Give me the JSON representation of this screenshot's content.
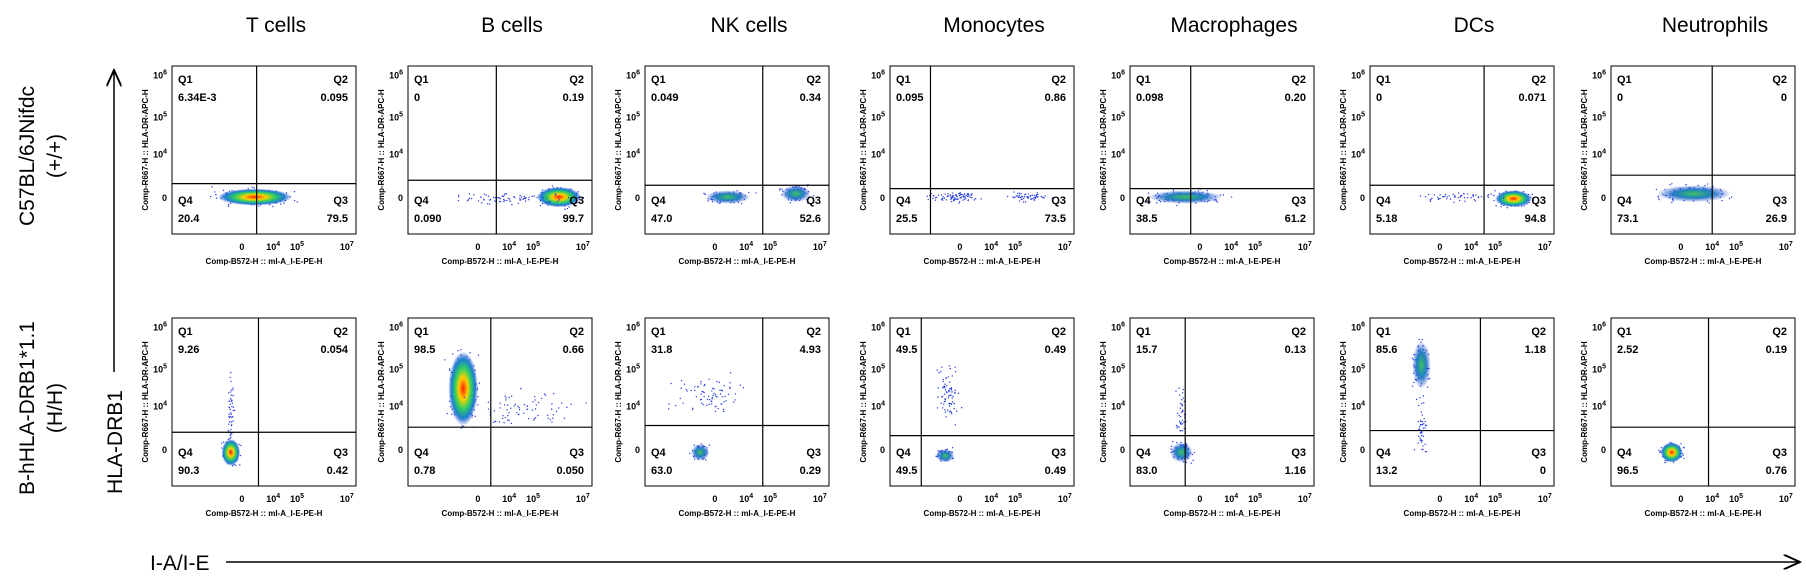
{
  "columns": [
    "T cells",
    "B cells",
    "NK cells",
    "Monocytes",
    "Macrophages",
    "DCs",
    "Neutrophils"
  ],
  "quadrant_names": [
    "Q1",
    "Q2",
    "Q3",
    "Q4"
  ],
  "panel_x_label": "Comp-B572-H :: mI-A_I-E-PE-H",
  "panel_y_label": "Comp-R667-H :: HLA-DR-APC-H",
  "x_ticks": [
    {
      "base": "0",
      "exp": ""
    },
    {
      "base": "10",
      "exp": "4"
    },
    {
      "base": "10",
      "exp": "5"
    },
    {
      "base": "10",
      "exp": "7"
    }
  ],
  "y_ticks": [
    {
      "base": "0",
      "exp": ""
    },
    {
      "base": "10",
      "exp": "4"
    },
    {
      "base": "10",
      "exp": "5"
    },
    {
      "base": "10",
      "exp": "6"
    }
  ],
  "y_arrow_label": "HLA-DRB1",
  "x_arrow_label": "I-A/I-E",
  "rows": [
    {
      "label": [
        "C57BL/6JNifdc",
        "(+/+)"
      ],
      "panels": [
        {
          "Q1": "6.34E-3",
          "Q2": "0.095",
          "Q3": "79.5",
          "Q4": "20.4"
        },
        {
          "Q1": "0",
          "Q2": "0.19",
          "Q3": "99.7",
          "Q4": "0.090"
        },
        {
          "Q1": "0.049",
          "Q2": "0.34",
          "Q3": "52.6",
          "Q4": "47.0"
        },
        {
          "Q1": "0.095",
          "Q2": "0.86",
          "Q3": "73.5",
          "Q4": "25.5"
        },
        {
          "Q1": "0.098",
          "Q2": "0.20",
          "Q3": "61.2",
          "Q4": "38.5"
        },
        {
          "Q1": "0",
          "Q2": "0.071",
          "Q3": "94.8",
          "Q4": "5.18"
        },
        {
          "Q1": "0",
          "Q2": "0",
          "Q3": "26.9",
          "Q4": "73.1"
        }
      ]
    },
    {
      "label": [
        "B-hHLA-DRB1*1.1",
        "(H/H)"
      ],
      "panels": [
        {
          "Q1": "9.26",
          "Q2": "0.054",
          "Q3": "0.42",
          "Q4": "90.3"
        },
        {
          "Q1": "98.5",
          "Q2": "0.66",
          "Q3": "0.050",
          "Q4": "0.78"
        },
        {
          "Q1": "31.8",
          "Q2": "4.93",
          "Q3": "0.29",
          "Q4": "63.0"
        },
        {
          "Q1": "49.5",
          "Q2": "0.49",
          "Q3": "0.49",
          "Q4": "49.5"
        },
        {
          "Q1": "15.7",
          "Q2": "0.13",
          "Q3": "1.16",
          "Q4": "83.0"
        },
        {
          "Q1": "85.6",
          "Q2": "1.18",
          "Q3": "0",
          "Q4": "13.2"
        },
        {
          "Q1": "2.52",
          "Q2": "0.19",
          "Q3": "0.76",
          "Q4": "96.5"
        }
      ]
    }
  ]
}
